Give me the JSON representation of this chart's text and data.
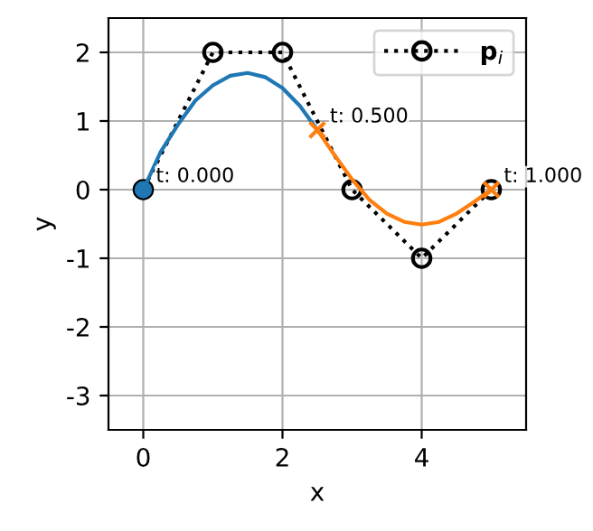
{
  "chart_data": {
    "type": "line",
    "xlabel": "x",
    "ylabel": "y",
    "xlim": [
      -0.5,
      5.5
    ],
    "ylim": [
      -3.5,
      2.5
    ],
    "xticks": [
      0,
      2,
      4
    ],
    "yticks": [
      -3,
      -2,
      -1,
      0,
      1,
      2
    ],
    "grid": true,
    "legend": "top right",
    "series": [
      {
        "name": "p$_{i}$",
        "color": "#000000",
        "line_style": "dotted",
        "marker": "circle",
        "x": [
          0,
          1,
          2,
          3,
          4,
          5
        ],
        "values": [
          0,
          2,
          2,
          0,
          -1,
          0
        ]
      },
      {
        "color": "#1f77b4",
        "line_style": "solid",
        "marker": "none",
        "x": [
          0,
          0.25,
          0.5,
          0.75,
          1.0,
          1.25,
          1.5,
          1.75,
          2.0,
          2.25,
          2.5
        ],
        "values": [
          0,
          0.55,
          0.95,
          1.3,
          1.52,
          1.66,
          1.7,
          1.64,
          1.48,
          1.22,
          0.87
        ]
      },
      {
        "color": "#ff7f0e",
        "line_style": "solid",
        "marker": "none",
        "x": [
          2.5,
          2.75,
          3.0,
          3.25,
          3.5,
          3.75,
          4.0,
          4.25,
          4.5,
          4.75,
          5.0
        ],
        "values": [
          0.87,
          0.5,
          0.15,
          -0.15,
          -0.35,
          -0.47,
          -0.51,
          -0.47,
          -0.35,
          -0.18,
          0
        ]
      },
      {
        "type": "scatter",
        "color": "#1f77b4",
        "marker": "circle",
        "x": [
          0
        ],
        "values": [
          0
        ]
      },
      {
        "type": "scatter",
        "color": "#ff7f0e",
        "marker": "cross",
        "x": [
          2.5,
          5
        ],
        "values": [
          0.87,
          0
        ]
      }
    ],
    "annotations": [
      {
        "text": "t: 0.000",
        "x": 0,
        "y": 0
      },
      {
        "text": "t: 0.500",
        "x": 2.5,
        "y": 0.87
      },
      {
        "text": "t: 1.000",
        "x": 5,
        "y": 0
      }
    ]
  }
}
